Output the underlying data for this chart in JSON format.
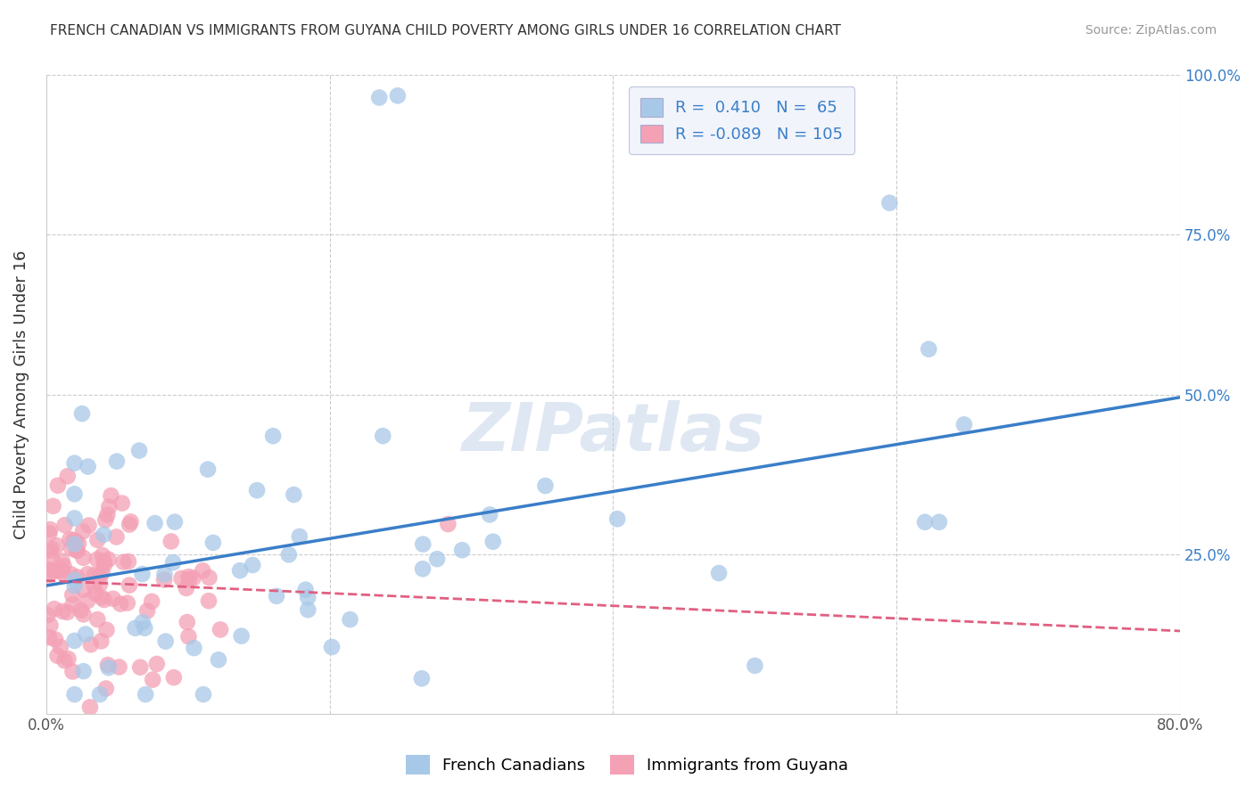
{
  "title": "FRENCH CANADIAN VS IMMIGRANTS FROM GUYANA CHILD POVERTY AMONG GIRLS UNDER 16 CORRELATION CHART",
  "source": "Source: ZipAtlas.com",
  "ylabel": "Child Poverty Among Girls Under 16",
  "watermark": "ZIPatlas",
  "xlim": [
    0.0,
    0.8
  ],
  "ylim": [
    0.0,
    1.0
  ],
  "blue_R": 0.41,
  "blue_N": 65,
  "pink_R": -0.089,
  "pink_N": 105,
  "blue_color": "#a8c8e8",
  "pink_color": "#f4a0b5",
  "blue_line_color": "#3a7ec8",
  "pink_line_color": "#e06080",
  "background_color": "#ffffff",
  "grid_color": "#cccccc"
}
